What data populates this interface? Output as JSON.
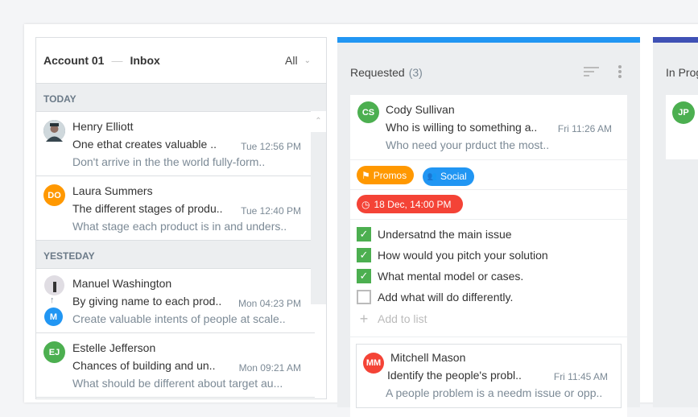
{
  "inbox": {
    "account": "Account 01",
    "separator": "—",
    "folder": "Inbox",
    "filter": "All",
    "sections": [
      {
        "label": "TODAY",
        "items": [
          {
            "name": "Henry Elliott",
            "subject": "One ethat creates valuable ..",
            "time": "Tue 12:56 PM",
            "preview": "Don't arrive in the the world fully-form..",
            "initials": "",
            "color": "#5a6a78"
          },
          {
            "name": "Laura Summers",
            "subject": "The different stages of produ..",
            "time": "Tue 12:40 PM",
            "preview": "What stage each product is in and unders..",
            "initials": "DO",
            "color": "#ff9800"
          }
        ]
      },
      {
        "label": "YESTEDAY",
        "items": [
          {
            "name": "Manuel Washington",
            "subject": "By giving name to each prod..",
            "time": "Mon 04:23 PM",
            "preview": "Create valuable intents of people at scale..",
            "initials": "M",
            "color": "#2196f3"
          },
          {
            "name": "Estelle Jefferson",
            "subject": "Chances of building and un..",
            "time": "Mon 09:21 AM",
            "preview": "What should be different about target au...",
            "initials": "EJ",
            "color": "#4caf50"
          }
        ]
      }
    ]
  },
  "columns": [
    {
      "title": "Requested",
      "count": "(3)",
      "accent": "#2196f3",
      "card": {
        "initials": "CS",
        "color": "#4caf50",
        "name": "Cody Sullivan",
        "subject": "Who is willing to something a..",
        "time": "Fri 11:26 AM",
        "preview": "Who need your prduct the most..",
        "tags": [
          {
            "label": "Promos",
            "color": "#ff9800",
            "icon": "tag-icon"
          },
          {
            "label": "Social",
            "color": "#2196f3",
            "icon": "people-icon"
          }
        ],
        "due": {
          "label": "18 Dec, 14:00 PM",
          "color": "#f44336"
        },
        "checklist": [
          {
            "label": "Undersatnd  the main issue",
            "done": true
          },
          {
            "label": "How would you pitch your solution",
            "done": true
          },
          {
            "label": "What mental model or cases.",
            "done": true
          },
          {
            "label": "Add what will do differently.",
            "done": false
          }
        ],
        "add_label": "Add to list"
      },
      "card2": {
        "initials": "MM",
        "color": "#f44336",
        "name": "Mitchell Mason",
        "subject": "Identify the people's probl..",
        "time": "Fri 11:45 AM",
        "preview": "A people problem is a needm issue or opp.."
      }
    },
    {
      "title": "In Progress",
      "accent": "#3f51b5",
      "card": {
        "initials": "JP",
        "color": "#4caf50"
      }
    }
  ]
}
